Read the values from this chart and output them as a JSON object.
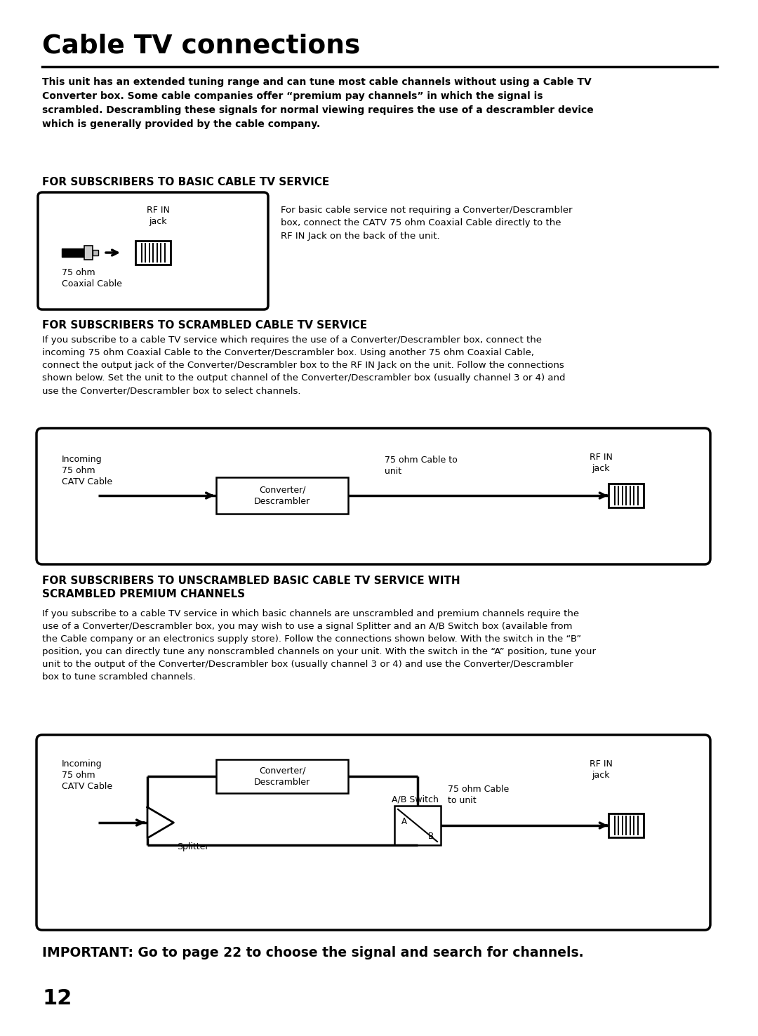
{
  "title": "Cable TV connections",
  "bg_color": "#ffffff",
  "text_color": "#000000",
  "intro_text": "This unit has an extended tuning range and can tune most cable channels without using a Cable TV\nConverter box. Some cable companies offer “premium pay channels” in which the signal is\nscrambled. Descrambling these signals for normal viewing requires the use of a descrambler device\nwhich is generally provided by the cable company.",
  "section1_heading": "FOR SUBSCRIBERS TO BASIC CABLE TV SERVICE",
  "section1_desc": "For basic cable service not requiring a Converter/Descrambler\nbox, connect the CATV 75 ohm Coaxial Cable directly to the\nRF IN Jack on the back of the unit.",
  "section2_heading": "FOR SUBSCRIBERS TO SCRAMBLED CABLE TV SERVICE",
  "section2_desc": "If you subscribe to a cable TV service which requires the use of a Converter/Descrambler box, connect the\nincoming 75 ohm Coaxial Cable to the Converter/Descrambler box. Using another 75 ohm Coaxial Cable,\nconnect the output jack of the Converter/Descrambler box to the RF IN Jack on the unit. Follow the connections\nshown below. Set the unit to the output channel of the Converter/Descrambler box (usually channel 3 or 4) and\nuse the Converter/Descrambler box to select channels.",
  "section3_heading_line1": "FOR SUBSCRIBERS TO UNSCRAMBLED BASIC CABLE TV SERVICE WITH",
  "section3_heading_line2": "SCRAMBLED PREMIUM CHANNELS",
  "section3_desc": "If you subscribe to a cable TV service in which basic channels are unscrambled and premium channels require the\nuse of a Converter/Descrambler box, you may wish to use a signal Splitter and an A/B Switch box (available from\nthe Cable company or an electronics supply store). Follow the connections shown below. With the switch in the “B”\nposition, you can directly tune any nonscrambled channels on your unit. With the switch in the “A” position, tune your\nunit to the output of the Converter/Descrambler box (usually channel 3 or 4) and use the Converter/Descrambler\nbox to tune scrambled channels.",
  "important_text": "IMPORTANT: Go to page 22 to choose the signal and search for channels.",
  "page_number": "12",
  "ML": 60,
  "MR": 1022,
  "PW": 1080,
  "PH": 1476
}
